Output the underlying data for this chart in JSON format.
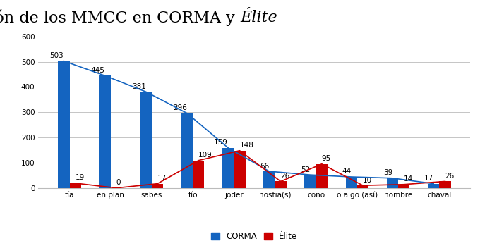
{
  "categories": [
    "tía",
    "en plan",
    "sabes",
    "tío",
    "joder",
    "hostia(s)",
    "coño",
    "o algo (así)",
    "hombre",
    "chaval"
  ],
  "corma_values": [
    503,
    445,
    381,
    296,
    159,
    66,
    52,
    44,
    39,
    17
  ],
  "elite_values": [
    19,
    0,
    17,
    109,
    148,
    26,
    95,
    10,
    14,
    26
  ],
  "title_normal": "Comparación de los MMCC en CORMA y ",
  "title_italic": "Élite",
  "bar_color_corma": "#1464C0",
  "bar_color_elite": "#CC0000",
  "line_color_corma": "#1464C0",
  "line_color_elite": "#CC0000",
  "ylim": [
    0,
    630
  ],
  "yticks": [
    0,
    100,
    200,
    300,
    400,
    500,
    600
  ],
  "legend_labels": [
    "CORMA",
    "Élite"
  ],
  "bar_width": 0.28,
  "background_color": "#FFFFFF",
  "grid_color": "#BBBBBB",
  "label_fontsize": 7.5,
  "title_fontsize": 16,
  "tick_fontsize": 7.5,
  "legend_fontsize": 8.5
}
